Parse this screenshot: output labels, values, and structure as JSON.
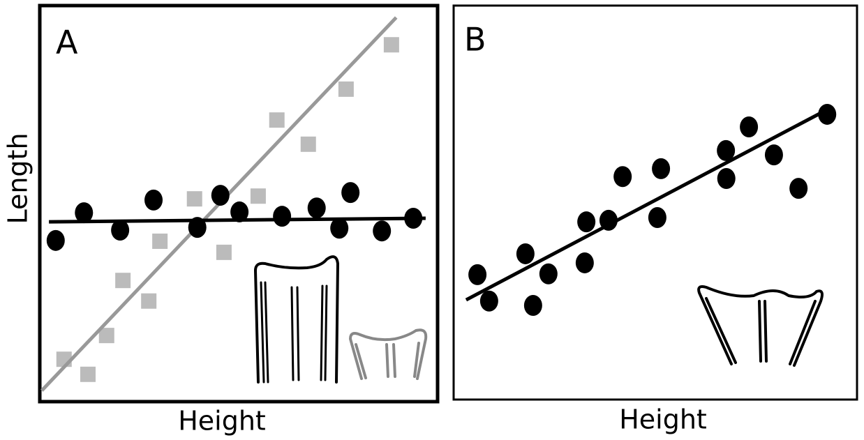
{
  "chart_data": [
    {
      "type": "scatter",
      "panel_label": "A",
      "x_label": "Height",
      "y_label": "Length",
      "xlim": [
        0,
        100
      ],
      "ylim": [
        0,
        100
      ],
      "series": [
        {
          "color": "#bbbbbb",
          "marker": "square",
          "x": [
            6.1,
            12.1,
            16.8,
            20.9,
            27.4,
            30.2,
            38.9,
            46.3,
            54.9,
            59.6,
            67.5,
            77.0,
            88.4
          ],
          "values": [
            10.7,
            6.9,
            16.7,
            30.6,
            25.4,
            40.5,
            51.2,
            37.7,
            51.9,
            71.1,
            65.0,
            78.9,
            90.1
          ]
        },
        {
          "color": "#999999",
          "marker": "line",
          "x": [
            0.5,
            89.6
          ],
          "values": [
            2.8,
            97.0
          ]
        },
        {
          "color": "#000000",
          "marker": "line",
          "x": [
            2.3,
            97.0
          ],
          "values": [
            45.4,
            46.3
          ]
        },
        {
          "color": "#000000",
          "marker": "circle",
          "x": [
            4.0,
            11.1,
            20.2,
            28.6,
            39.6,
            45.4,
            50.2,
            60.9,
            69.6,
            75.3,
            78.1,
            86.0,
            93.9
          ],
          "values": [
            40.7,
            47.7,
            43.3,
            50.9,
            44.0,
            52.1,
            47.9,
            46.8,
            48.9,
            43.8,
            52.8,
            43.1,
            46.3
          ]
        }
      ]
    },
    {
      "type": "scatter",
      "panel_label": "B",
      "x_label": "Height",
      "xlim": [
        0,
        100
      ],
      "ylim": [
        0,
        100
      ],
      "series": [
        {
          "color": "#000000",
          "marker": "line",
          "x": [
            3.1,
            91.7
          ],
          "values": [
            25.3,
            73.1
          ]
        },
        {
          "color": "#000000",
          "marker": "circle",
          "x": [
            5.9,
            8.8,
            17.8,
            19.7,
            23.5,
            32.5,
            32.9,
            38.4,
            41.9,
            50.5,
            51.4,
            67.5,
            67.6,
            73.2,
            79.4,
            85.5,
            92.6
          ],
          "values": [
            31.7,
            25.0,
            37.0,
            23.9,
            31.9,
            34.7,
            45.1,
            45.5,
            56.6,
            46.2,
            58.6,
            63.2,
            56.1,
            69.2,
            62.1,
            53.6,
            72.4
          ]
        }
      ]
    }
  ]
}
